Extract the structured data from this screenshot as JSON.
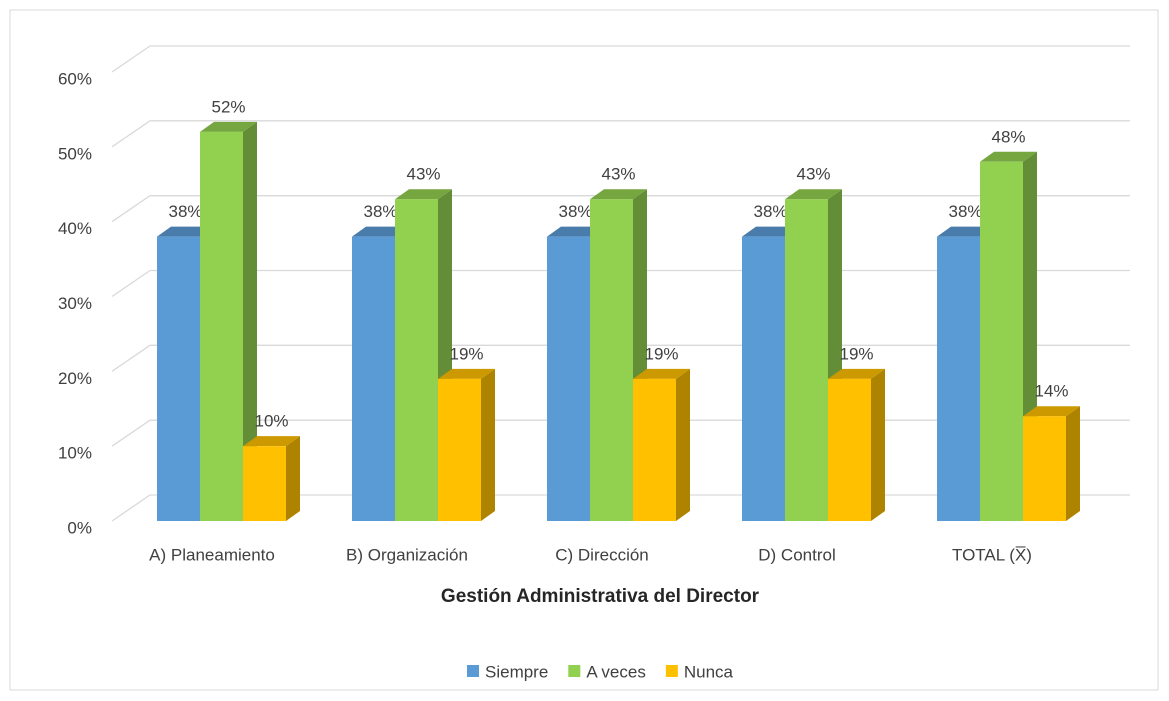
{
  "chart_data": {
    "type": "bar3d",
    "x_label": "Gestión Administrativa del Director",
    "categories": [
      "A) Planeamiento",
      "B) Organización",
      "C) Dirección",
      "D) Control",
      "TOTAL (X̅)"
    ],
    "series": [
      {
        "name": "Siempre",
        "color": "#5b9bd5",
        "values": [
          38,
          38,
          38,
          38,
          38
        ],
        "value_labels": [
          "38%",
          "38%",
          "38%",
          "38%",
          "38%"
        ]
      },
      {
        "name": "A veces",
        "color": "#92d050",
        "values": [
          52,
          43,
          43,
          43,
          48
        ],
        "value_labels": [
          "52%",
          "43%",
          "43%",
          "43%",
          "48%"
        ]
      },
      {
        "name": "Nunca",
        "color": "#ffc000",
        "values": [
          10,
          19,
          19,
          19,
          14
        ],
        "value_labels": [
          "10%",
          "19%",
          "19%",
          "19%",
          "14%"
        ]
      }
    ],
    "ylim": [
      0,
      60
    ],
    "yticks": [
      {
        "value": 0,
        "label": "0%"
      },
      {
        "value": 10,
        "label": "10%"
      },
      {
        "value": 20,
        "label": "20%"
      },
      {
        "value": 30,
        "label": "30%"
      },
      {
        "value": 40,
        "label": "40%"
      },
      {
        "value": 50,
        "label": "50%"
      },
      {
        "value": 60,
        "label": "60%"
      }
    ],
    "grid": true,
    "legend": "bottom"
  }
}
